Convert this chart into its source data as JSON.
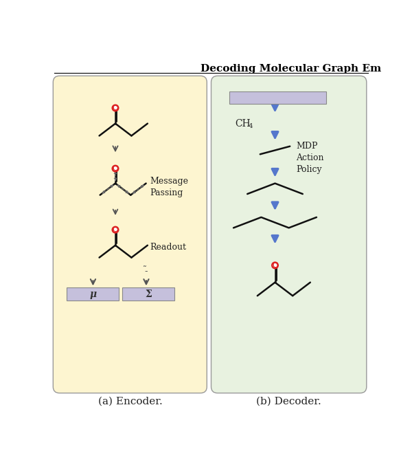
{
  "title": "Decoding Molecular Graph Em",
  "title_bold": true,
  "title_fontsize": 11,
  "bg_color": "#ffffff",
  "encoder_bg": "#fdf5d0",
  "decoder_bg": "#e8f2e0",
  "box_stroke": "#999999",
  "mu_sigma_color": "#c5c0dc",
  "arrow_color_encoder": "#555555",
  "arrow_color_decoder": "#5577cc",
  "label_encoder": "(a) Encoder.",
  "label_decoder": "(b) Decoder.",
  "label_fontsize": 11,
  "message_passing_text": "Message\nPassing",
  "readout_text": "Readout",
  "mdp_text": "MDP\nAction\nPolicy",
  "mu_text": "μ",
  "sigma_text": "Σ",
  "oxygen_color": "#dd2222",
  "bond_color": "#111111",
  "bond_lw": 1.8
}
